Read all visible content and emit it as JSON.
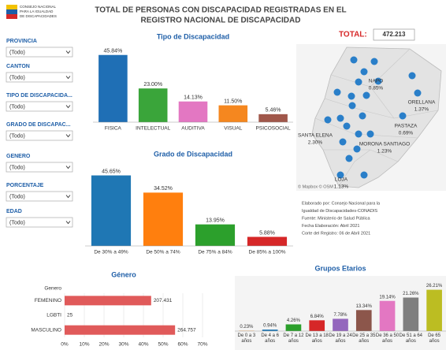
{
  "header": {
    "title_lines": [
      "TOTAL DE PERSONAS CON DISCAPACIDAD REGISTRADAS EN EL",
      "REGISTRO NACIONAL DE DISCAPACIDAD"
    ],
    "logo_text": [
      "CONSEJO NACIONAL",
      "PARA LA IGUALDAD",
      "DE DISCAPACIDADES"
    ]
  },
  "filters": [
    {
      "label": "PROVINCIA",
      "value": "(Todo)"
    },
    {
      "label": "CANTON",
      "value": "(Todo)"
    },
    {
      "label": "TIPO DE DISCAPACIDA...",
      "value": "(Todo)"
    },
    {
      "label": "GRADO DE DISCAPAC...",
      "value": "(Todo)"
    },
    {
      "label": "GENERO",
      "value": "(Todo)"
    },
    {
      "label": "PORCENTAJE",
      "value": "(Todo)"
    },
    {
      "label": "EDAD",
      "value": "(Todo)"
    }
  ],
  "map": {
    "total_label": "TOTAL:",
    "total": "472.213",
    "labels": [
      {
        "name": "NAPO",
        "value": "0.85%"
      },
      {
        "name": "ORELLANA",
        "value": "1.37%"
      },
      {
        "name": "PASTAZA",
        "value": "0.69%"
      },
      {
        "name": "SANTA ELENA",
        "value": "2.30%"
      },
      {
        "name": "MORONA SANTIAGO",
        "value": "1.23%"
      },
      {
        "name": "LOJA",
        "value": "1.13%"
      }
    ],
    "attribution": "© Mapbox © OSM"
  },
  "note": [
    "Elaborado por: Consejo Nacional para la",
    "Igualdad de Discapacidades-CONADIS",
    "Fuente: Ministerio de Salud Pública",
    "Fecha Elaboración: Abril 2021",
    "Corte del Registro: 06 de Abril 2021"
  ],
  "chart_data": [
    {
      "type": "bar",
      "title": "Tipo de Discapacidad",
      "categories": [
        "FISICA",
        "INTELECTUAL",
        "AUDITIVA",
        "VISUAL",
        "PSICOSOCIAL"
      ],
      "values": [
        45.84,
        23.0,
        14.13,
        11.5,
        5.46
      ],
      "value_labels": [
        "45.84%",
        "23.00%",
        "14.13%",
        "11.50%",
        "5.46%"
      ],
      "colors": [
        "#1f6fb5",
        "#3aa53a",
        "#e377c2",
        "#f5871f",
        "#a0574a"
      ],
      "ylim": [
        0,
        50
      ]
    },
    {
      "type": "bar",
      "title": "Grado de Discapacidad",
      "categories": [
        "De 30% a 49%",
        "De 50% a 74%",
        "De 75% a 84%",
        "De 85% a 100%"
      ],
      "values": [
        45.65,
        34.52,
        13.95,
        5.88
      ],
      "value_labels": [
        "45.65%",
        "34.52%",
        "13.95%",
        "5.88%"
      ],
      "colors": [
        "#1f77b4",
        "#ff7f0e",
        "#2ca02c",
        "#d62728"
      ],
      "ylim": [
        0,
        50
      ]
    },
    {
      "type": "hbar",
      "title": "Género",
      "category_header": "Genero",
      "categories": [
        "FEMENINO",
        "LGBTI",
        "MASCULINO"
      ],
      "values": [
        207431,
        25,
        264757
      ],
      "value_labels": [
        "207.431",
        "25",
        "264.757"
      ],
      "color": "#e05a5a",
      "xlim": [
        0,
        330549.1
      ],
      "xticks": [
        {
          "value": 0,
          "label": "0%"
        },
        {
          "value": 47221.3,
          "label": "10%"
        },
        {
          "value": 94442.6,
          "label": "20%"
        },
        {
          "value": 141663.9,
          "label": "30%"
        },
        {
          "value": 188885.2,
          "label": "40%"
        },
        {
          "value": 236106.5,
          "label": "50%"
        },
        {
          "value": 283327.8,
          "label": "60%"
        },
        {
          "value": 330549.1,
          "label": "70%"
        }
      ]
    },
    {
      "type": "bar",
      "title": "Grupos Etarios",
      "categories": [
        "De 0 a 3 años",
        "De 4 a 6 años",
        "De 7 a 12 años",
        "De 13 a 18 años",
        "De 19 a 24 años",
        "De 25 a 35 años",
        "De 36 a 50 años",
        "De 51 a 64 años",
        "De 65 años"
      ],
      "values": [
        0.23,
        0.94,
        4.26,
        6.84,
        7.78,
        13.34,
        19.14,
        21.26,
        26.21
      ],
      "value_labels": [
        "0.23%",
        "0.94%",
        "4.26%",
        "6.84%",
        "7.78%",
        "13.34%",
        "19.14%",
        "21.26%",
        "26.21%"
      ],
      "colors": [
        "#ff9f40",
        "#1f77b4",
        "#2ca02c",
        "#d62728",
        "#9467bd",
        "#8c564b",
        "#e377c2",
        "#7f7f7f",
        "#bcbd22"
      ],
      "ylim": [
        0,
        30
      ]
    }
  ]
}
